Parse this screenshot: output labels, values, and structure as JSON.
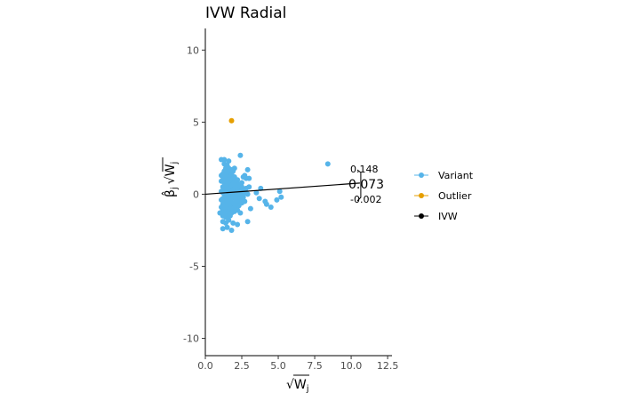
{
  "chart_data": {
    "type": "scatter",
    "title": "IVW Radial",
    "xlabel": "√W",
    "xlabel_sub": "j",
    "ylabel": "β̂",
    "ylabel_sub": "j",
    "ylabel_sqrt": "√W",
    "ylabel_sqrt_sub": "j",
    "xlim": [
      0,
      12.8
    ],
    "ylim": [
      -11.2,
      11.5
    ],
    "x_ticks": [
      0,
      2.5,
      5,
      7.5,
      10,
      12.5
    ],
    "x_tick_labels": [
      "0.0",
      "2.5",
      "5.0",
      "7.5",
      "10.0",
      "12.5"
    ],
    "y_ticks": [
      -10,
      -5,
      0,
      5,
      10
    ],
    "y_tick_labels": [
      "-10",
      "-5",
      "0",
      "5",
      "10"
    ],
    "grid": false,
    "legend_position": "right",
    "legend": [
      {
        "name": "Variant",
        "color": "#56B4E9"
      },
      {
        "name": "Outlier",
        "color": "#E69F00"
      },
      {
        "name": "IVW",
        "color": "#000000"
      }
    ],
    "colors": {
      "variant": "#56B4E9",
      "outlier": "#E69F00",
      "ivw": "#000000"
    },
    "series": [
      {
        "name": "Variant",
        "points": [
          [
            1.0,
            -1.3
          ],
          [
            1.1,
            -0.9
          ],
          [
            1.1,
            -0.4
          ],
          [
            1.1,
            0.2
          ],
          [
            1.1,
            0.9
          ],
          [
            1.1,
            1.3
          ],
          [
            1.1,
            2.4
          ],
          [
            1.2,
            -2.4
          ],
          [
            1.2,
            -1.9
          ],
          [
            1.2,
            -1.5
          ],
          [
            1.2,
            -1.1
          ],
          [
            1.2,
            -0.7
          ],
          [
            1.2,
            -0.3
          ],
          [
            1.2,
            0.1
          ],
          [
            1.2,
            0.5
          ],
          [
            1.2,
            1.0
          ],
          [
            1.2,
            1.4
          ],
          [
            1.3,
            -1.2
          ],
          [
            1.3,
            -0.8
          ],
          [
            1.3,
            -0.4
          ],
          [
            1.3,
            0.0
          ],
          [
            1.3,
            0.4
          ],
          [
            1.3,
            0.8
          ],
          [
            1.3,
            1.2
          ],
          [
            1.3,
            1.6
          ],
          [
            1.3,
            2.1
          ],
          [
            1.3,
            2.4
          ],
          [
            1.4,
            -2.0
          ],
          [
            1.4,
            -1.6
          ],
          [
            1.4,
            -1.0
          ],
          [
            1.4,
            -0.6
          ],
          [
            1.4,
            -0.2
          ],
          [
            1.4,
            0.2
          ],
          [
            1.4,
            0.6
          ],
          [
            1.4,
            1.0
          ],
          [
            1.4,
            1.4
          ],
          [
            1.4,
            1.8
          ],
          [
            1.5,
            -2.3
          ],
          [
            1.5,
            -1.4
          ],
          [
            1.5,
            -0.9
          ],
          [
            1.5,
            -0.5
          ],
          [
            1.5,
            -0.1
          ],
          [
            1.5,
            0.3
          ],
          [
            1.5,
            0.7
          ],
          [
            1.5,
            1.1
          ],
          [
            1.5,
            1.5
          ],
          [
            1.5,
            2.0
          ],
          [
            1.6,
            -1.8
          ],
          [
            1.6,
            -1.2
          ],
          [
            1.6,
            -0.7
          ],
          [
            1.6,
            -0.3
          ],
          [
            1.6,
            0.1
          ],
          [
            1.6,
            0.5
          ],
          [
            1.6,
            0.9
          ],
          [
            1.6,
            1.3
          ],
          [
            1.6,
            1.8
          ],
          [
            1.6,
            2.3
          ],
          [
            1.7,
            -1.5
          ],
          [
            1.7,
            -1.0
          ],
          [
            1.7,
            -0.5
          ],
          [
            1.7,
            0.0
          ],
          [
            1.7,
            0.4
          ],
          [
            1.7,
            0.8
          ],
          [
            1.7,
            1.2
          ],
          [
            1.7,
            1.6
          ],
          [
            1.8,
            -2.5
          ],
          [
            1.8,
            -1.3
          ],
          [
            1.8,
            -0.8
          ],
          [
            1.8,
            -0.3
          ],
          [
            1.8,
            0.2
          ],
          [
            1.8,
            0.6
          ],
          [
            1.8,
            1.0
          ],
          [
            1.8,
            1.4
          ],
          [
            1.8,
            1.7
          ],
          [
            1.9,
            -2.0
          ],
          [
            1.9,
            -1.0
          ],
          [
            1.9,
            -0.6
          ],
          [
            1.9,
            -0.1
          ],
          [
            1.9,
            0.3
          ],
          [
            1.9,
            0.7
          ],
          [
            1.9,
            1.1
          ],
          [
            1.9,
            1.6
          ],
          [
            2.0,
            -1.2
          ],
          [
            2.0,
            -0.7
          ],
          [
            2.0,
            -0.2
          ],
          [
            2.0,
            0.3
          ],
          [
            2.0,
            0.8
          ],
          [
            2.0,
            1.2
          ],
          [
            2.0,
            1.8
          ],
          [
            2.1,
            -0.9
          ],
          [
            2.1,
            -0.4
          ],
          [
            2.1,
            0.1
          ],
          [
            2.1,
            0.5
          ],
          [
            2.1,
            0.9
          ],
          [
            2.2,
            -2.1
          ],
          [
            2.2,
            -1.1
          ],
          [
            2.2,
            -0.5
          ],
          [
            2.2,
            0.0
          ],
          [
            2.2,
            0.4
          ],
          [
            2.2,
            1.0
          ],
          [
            2.3,
            -0.8
          ],
          [
            2.3,
            -0.2
          ],
          [
            2.3,
            0.3
          ],
          [
            2.3,
            0.7
          ],
          [
            2.4,
            -1.3
          ],
          [
            2.4,
            -0.4
          ],
          [
            2.4,
            0.2
          ],
          [
            2.4,
            0.6
          ],
          [
            2.4,
            2.7
          ],
          [
            2.5,
            -0.6
          ],
          [
            2.5,
            0.0
          ],
          [
            2.5,
            0.5
          ],
          [
            2.5,
            0.8
          ],
          [
            2.6,
            -0.2
          ],
          [
            2.6,
            0.3
          ],
          [
            2.6,
            1.2
          ],
          [
            2.7,
            -0.5
          ],
          [
            2.7,
            0.1
          ],
          [
            2.7,
            1.3
          ],
          [
            2.8,
            0.4
          ],
          [
            2.8,
            1.1
          ],
          [
            2.9,
            -1.9
          ],
          [
            2.9,
            0.0
          ],
          [
            2.9,
            1.7
          ],
          [
            3.0,
            0.5
          ],
          [
            3.0,
            1.1
          ],
          [
            3.1,
            -1.0
          ],
          [
            3.5,
            0.1
          ],
          [
            3.7,
            -0.3
          ],
          [
            3.8,
            0.4
          ],
          [
            4.1,
            -0.5
          ],
          [
            4.2,
            -0.7
          ],
          [
            4.5,
            -0.9
          ],
          [
            4.9,
            -0.4
          ],
          [
            5.1,
            0.2
          ],
          [
            5.2,
            -0.2
          ],
          [
            8.4,
            2.1
          ]
        ]
      },
      {
        "name": "Outlier",
        "points": [
          [
            1.8,
            5.1
          ]
        ]
      }
    ],
    "ivw_line": {
      "name": "IVW",
      "slope": 0.073,
      "intercept": 0,
      "x_end": 10.6
    },
    "annotations": {
      "estimate": "0.073",
      "ci_upper": "0.148",
      "ci_lower": "-0.002"
    }
  }
}
